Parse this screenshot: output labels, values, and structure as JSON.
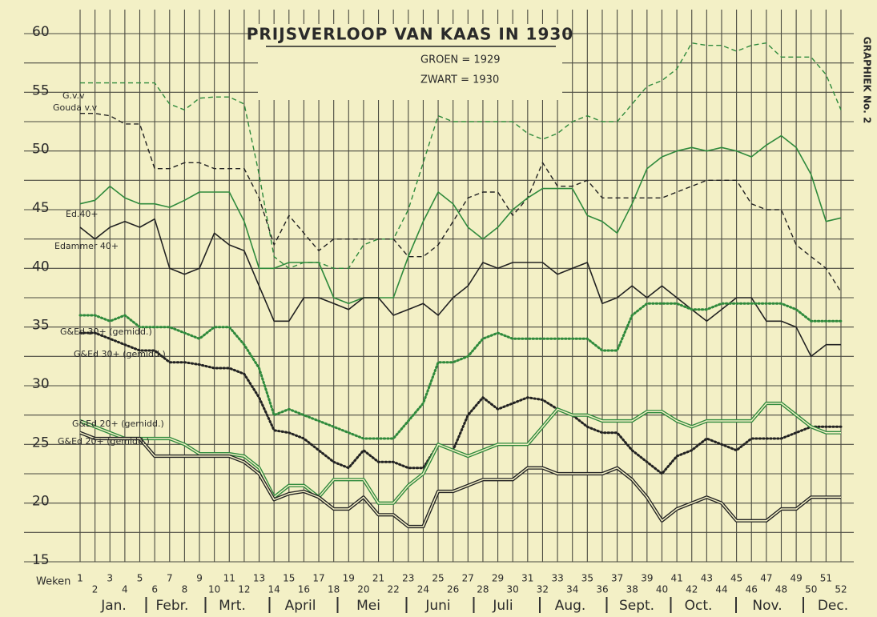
{
  "chart_data": {
    "type": "line",
    "title": "PRIJSVERLOOP VAN KAAS IN 1930",
    "subtitle": [
      "GROEN = 1929",
      "ZWART = 1930"
    ],
    "side_label": "GRAPHIEK No. 2",
    "x_label": "Weken",
    "x": [
      1,
      2,
      3,
      4,
      5,
      6,
      7,
      8,
      9,
      10,
      11,
      12,
      13,
      14,
      15,
      16,
      17,
      18,
      19,
      20,
      21,
      22,
      23,
      24,
      25,
      26,
      27,
      28,
      29,
      30,
      31,
      32,
      33,
      34,
      35,
      36,
      37,
      38,
      39,
      40,
      41,
      42,
      43,
      44,
      45,
      46,
      47,
      48,
      49,
      50,
      51,
      52
    ],
    "xlim": [
      1,
      52
    ],
    "months": [
      "Jan.",
      "Febr.",
      "Mrt.",
      "April",
      "Mei",
      "Juni",
      "Juli",
      "Aug.",
      "Sept.",
      "Oct.",
      "Nov.",
      "Dec."
    ],
    "ylim": [
      15,
      60
    ],
    "yticks": [
      15,
      20,
      25,
      30,
      35,
      40,
      45,
      50,
      55,
      60
    ],
    "grid": true,
    "series": [
      {
        "name": "G.v.v",
        "color": "#2f8a3c",
        "style": "dashed",
        "values": [
          55.8,
          55.8,
          55.8,
          55.8,
          55.8,
          55.8,
          54,
          53.5,
          54.5,
          54.6,
          54.6,
          54,
          48,
          41,
          40,
          40.5,
          40.5,
          40,
          40,
          42,
          42.5,
          42.5,
          45,
          49,
          53,
          52.5,
          52.5,
          52.5,
          52.5,
          52.5,
          51.5,
          51,
          51.5,
          52.5,
          53,
          52.5,
          52.5,
          54,
          55.5,
          56,
          57,
          59.2,
          59,
          59,
          58.5,
          59,
          59.2,
          58,
          58,
          58,
          56.5,
          53.5
        ]
      },
      {
        "name": "Gouda v.v",
        "color": "#222222",
        "style": "dashed",
        "values": [
          53.2,
          53.2,
          53,
          52.3,
          52.3,
          48.5,
          48.5,
          49,
          49,
          48.5,
          48.5,
          48.5,
          46,
          42,
          44.5,
          43,
          41.5,
          42.5,
          42.5,
          42.5,
          42.5,
          42.5,
          41,
          41,
          42,
          44,
          46,
          46.5,
          46.5,
          44.5,
          46,
          49,
          47,
          47,
          47.5,
          46,
          46,
          46,
          46,
          46,
          46.5,
          47,
          47.5,
          47.5,
          47.5,
          45.5,
          45,
          45,
          42,
          41,
          40,
          38
        ]
      },
      {
        "name": "Ed.40+",
        "color": "#2f8a3c",
        "style": "solid",
        "values": [
          45.5,
          45.8,
          47,
          46,
          45.5,
          45.5,
          45.2,
          45.8,
          46.5,
          46.5,
          46.5,
          44,
          40,
          40,
          40.5,
          40.5,
          40.5,
          37.5,
          37,
          37.5,
          37.5,
          37.5,
          41,
          44,
          46.5,
          45.5,
          43.5,
          42.5,
          43.5,
          45,
          46,
          46.8,
          46.8,
          46.8,
          44.5,
          44,
          43,
          45.5,
          48.5,
          49.5,
          50,
          50.3,
          50,
          50.3,
          50,
          49.5,
          50.5,
          51.3,
          50.3,
          48,
          44,
          44.3
        ]
      },
      {
        "name": "Edammer 40+",
        "color": "#222222",
        "style": "solid",
        "values": [
          43.5,
          42.5,
          43.5,
          44,
          43.5,
          44.2,
          40,
          39.5,
          40,
          43,
          42,
          41.5,
          38.5,
          35.5,
          35.5,
          37.5,
          37.5,
          37,
          36.5,
          37.5,
          37.5,
          36,
          36.5,
          37,
          36,
          37.5,
          38.5,
          40.5,
          40,
          40.5,
          40.5,
          40.5,
          39.5,
          40,
          40.5,
          37,
          37.5,
          38.5,
          37.5,
          38.5,
          37.5,
          36.5,
          35.5,
          36.5,
          37.5,
          37.5,
          35.5,
          35.5,
          35,
          32.5,
          33.5,
          33.5
        ]
      },
      {
        "name": "G&Ed 30+ (gemidd.)",
        "color": "#2f8a3c",
        "style": "dotted",
        "values": [
          36,
          36,
          35.5,
          36,
          35,
          35,
          35,
          34.5,
          34,
          35,
          35,
          33.5,
          31.5,
          27.5,
          28,
          27.5,
          27,
          26.5,
          26,
          25.5,
          25.5,
          25.5,
          27,
          28.5,
          32,
          32,
          32.5,
          34,
          34.5,
          34,
          34,
          34,
          34,
          34,
          34,
          33,
          33,
          36,
          37,
          37,
          37,
          36.5,
          36.5,
          37,
          37,
          37,
          37,
          37,
          36.5,
          35.5,
          35.5,
          35.5
        ]
      },
      {
        "name": "G&Ed 30+ (gemidd.)",
        "color": "#222222",
        "style": "dotted",
        "values": [
          34.5,
          34.5,
          34,
          33.5,
          33,
          33,
          32,
          32,
          31.8,
          31.5,
          31.5,
          31,
          29,
          26.2,
          26,
          25.5,
          24.5,
          23.5,
          23,
          24.5,
          23.5,
          23.5,
          23,
          23,
          25,
          24.5,
          27.5,
          29,
          28,
          28.5,
          29,
          28.8,
          28,
          27.5,
          26.5,
          26,
          26,
          24.5,
          23.5,
          22.5,
          24,
          24.5,
          25.5,
          25,
          24.5,
          25.5,
          25.5,
          25.5,
          26,
          26.5,
          26.5,
          26.5
        ]
      },
      {
        "name": "G&Ed 20+ (gemidd.)",
        "color": "#2f8a3c",
        "style": "double",
        "values": [
          27,
          26.5,
          26,
          25.5,
          25.5,
          25.5,
          25.5,
          25,
          24.2,
          24.2,
          24.2,
          24,
          23,
          20.5,
          21.5,
          21.5,
          20.5,
          22,
          22,
          22,
          20,
          20,
          21.5,
          22.5,
          25,
          24.5,
          24,
          24.5,
          25,
          25,
          25,
          26.5,
          28,
          27.5,
          27.5,
          27,
          27,
          27,
          27.8,
          27.8,
          27,
          26.5,
          27,
          27,
          27,
          27,
          28.5,
          28.5,
          27.5,
          26.5,
          26,
          26
        ]
      },
      {
        "name": "G&Ed 20+ (gemidd.)",
        "color": "#222222",
        "style": "double",
        "values": [
          26,
          25.5,
          25.5,
          25.5,
          25.5,
          24,
          24,
          24,
          24,
          24,
          24,
          23.5,
          22.5,
          20.3,
          20.8,
          21,
          20.5,
          19.5,
          19.5,
          20.5,
          19,
          19,
          18,
          18,
          21,
          21,
          21.5,
          22,
          22,
          22,
          23,
          23,
          22.5,
          22.5,
          22.5,
          22.5,
          23,
          22,
          20.5,
          18.5,
          19.5,
          20,
          20.5,
          20,
          18.5,
          18.5,
          18.5,
          19.5,
          19.5,
          20.5,
          20.5,
          20.5
        ]
      }
    ]
  }
}
